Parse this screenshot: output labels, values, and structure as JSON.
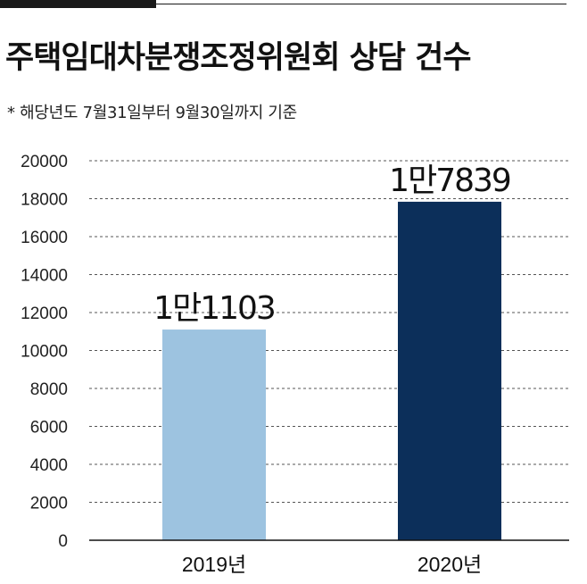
{
  "header": {
    "title": "주택임대차분쟁조정위원회 상담 건수",
    "note": "* 해당년도 7월31일부터 9월30일까지 기준"
  },
  "chart_data": {
    "type": "bar",
    "title": "주택임대차분쟁조정위원회 상담 건수",
    "subtitle": "* 해당년도 7월31일부터 9월30일까지 기준",
    "categories": [
      "2019년",
      "2020년"
    ],
    "values": [
      11103,
      17839
    ],
    "data_labels": [
      "1만1103",
      "1만7839"
    ],
    "ylim": [
      0,
      20000
    ],
    "yticks": [
      0,
      2000,
      4000,
      6000,
      8000,
      10000,
      12000,
      14000,
      16000,
      18000,
      20000
    ],
    "grid": true,
    "bar_colors": [
      "#9dc3e0",
      "#0c2f5a"
    ]
  }
}
